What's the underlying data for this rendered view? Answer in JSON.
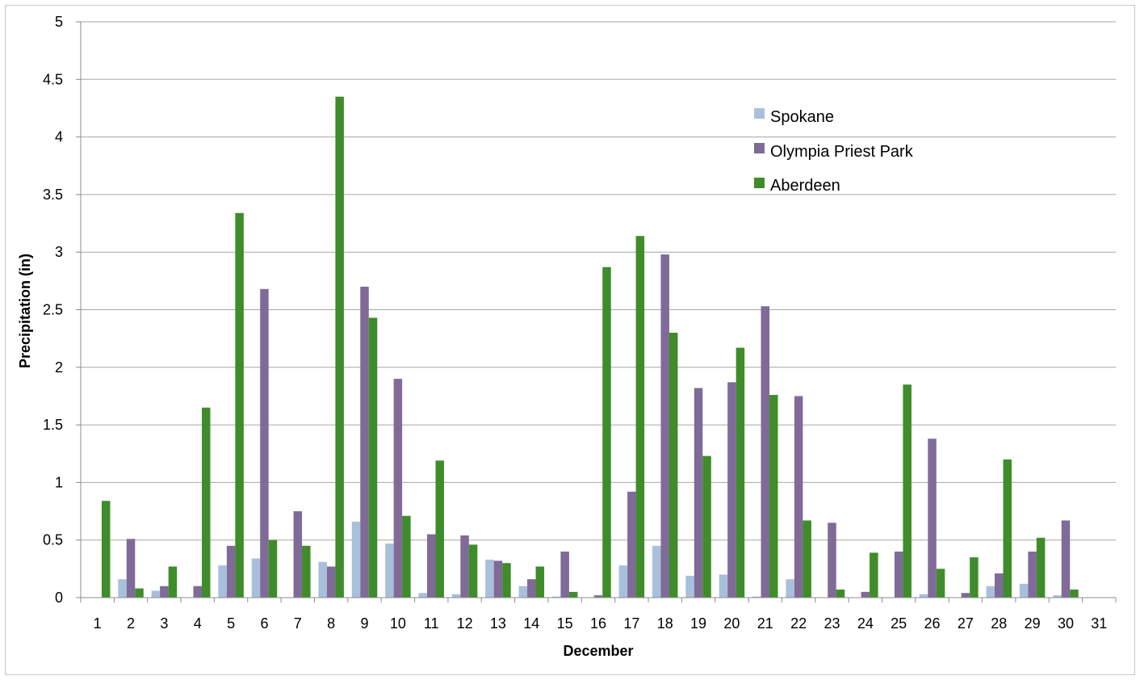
{
  "chart_data": {
    "type": "bar",
    "title": "",
    "xlabel": "December",
    "ylabel": "Precipitation (in)",
    "ylim": [
      0,
      5
    ],
    "y_ticks": [
      "0",
      "0.5",
      "1",
      "1.5",
      "2",
      "2.5",
      "3",
      "3.5",
      "4",
      "4.5",
      "5"
    ],
    "grid": true,
    "legend_position": "top-right",
    "categories": [
      "1",
      "2",
      "3",
      "4",
      "5",
      "6",
      "7",
      "8",
      "9",
      "10",
      "11",
      "12",
      "13",
      "14",
      "15",
      "16",
      "17",
      "18",
      "19",
      "20",
      "21",
      "22",
      "23",
      "24",
      "25",
      "26",
      "27",
      "28",
      "29",
      "30",
      "31"
    ],
    "series": [
      {
        "name": "Spokane",
        "color": "#a8c0dc",
        "values": [
          0,
          0.16,
          0.06,
          0,
          0.28,
          0.34,
          0,
          0.31,
          0.66,
          0.47,
          0.04,
          0.03,
          0.33,
          0.1,
          0.01,
          0,
          0.28,
          0.45,
          0.19,
          0.2,
          0.01,
          0.16,
          0,
          0,
          0,
          0.03,
          0,
          0.1,
          0.12,
          0.02,
          0
        ]
      },
      {
        "name": "Olympia Priest Park",
        "color": "#7f6a98",
        "values": [
          0,
          0.51,
          0.1,
          0.1,
          0.45,
          2.68,
          0.75,
          0.27,
          2.7,
          1.9,
          0.55,
          0.54,
          0.32,
          0.16,
          0.4,
          0.02,
          0.92,
          2.98,
          1.82,
          1.87,
          2.53,
          1.75,
          0.65,
          0.05,
          0.4,
          1.38,
          0.04,
          0.21,
          0.4,
          0.67,
          0
        ]
      },
      {
        "name": "Aberdeen",
        "color": "#3f8c2a",
        "values": [
          0.84,
          0.08,
          0.27,
          1.65,
          3.34,
          0.5,
          0.45,
          4.35,
          2.43,
          0.71,
          1.19,
          0.46,
          0.3,
          0.27,
          0.05,
          2.87,
          3.14,
          2.3,
          1.23,
          2.17,
          1.76,
          0.67,
          0.07,
          0.39,
          1.85,
          0.25,
          0.35,
          1.2,
          0.52,
          0.07,
          0
        ]
      }
    ]
  }
}
